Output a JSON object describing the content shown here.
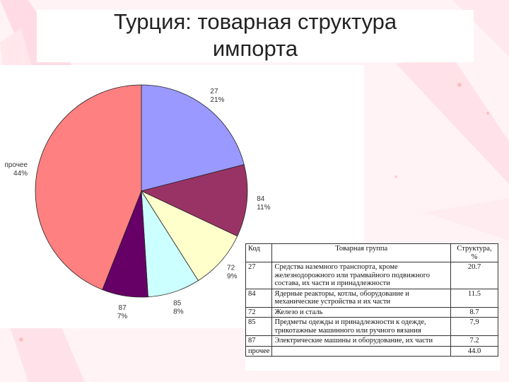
{
  "slide": {
    "title": "Турция: товарная структура\nимпорта"
  },
  "chart_data": {
    "type": "pie",
    "title": "",
    "slices": [
      {
        "code": "27",
        "pct_label": "21%",
        "value": 21,
        "color": "#9999ff"
      },
      {
        "code": "84",
        "pct_label": "11%",
        "value": 11,
        "color": "#993366"
      },
      {
        "code": "72",
        "pct_label": "9%",
        "value": 9,
        "color": "#ffffcc"
      },
      {
        "code": "85",
        "pct_label": "8%",
        "value": 8,
        "color": "#ccffff"
      },
      {
        "code": "87",
        "pct_label": "7%",
        "value": 7,
        "color": "#660066"
      },
      {
        "code": "прочее",
        "pct_label": "44%",
        "value": 44,
        "color": "#ff8080"
      }
    ]
  },
  "table": {
    "headers": [
      "Код",
      "Товарная группа",
      "Структура, %"
    ],
    "rows": [
      {
        "code": "27",
        "group": "Средства наземного транспорта, кроме железнодорожного или трамвайного подвижного состава, их части и принадлежности",
        "share": "20.7"
      },
      {
        "code": "84",
        "group": "Ядерные реакторы, котлы, оборудование и механические устройства и их части",
        "share": "11.5"
      },
      {
        "code": "72",
        "group": "Железо и сталь",
        "share": "8.7"
      },
      {
        "code": "85",
        "group": "Предметы одежды и принадлежности к одежде, трикотажные машинного или ручного вязания",
        "share": "7,9"
      },
      {
        "code": "87",
        "group": "Электрические машины и оборудование, их части",
        "share": "7.2"
      },
      {
        "code": "прочее",
        "group": "",
        "share": "44.0"
      }
    ]
  }
}
